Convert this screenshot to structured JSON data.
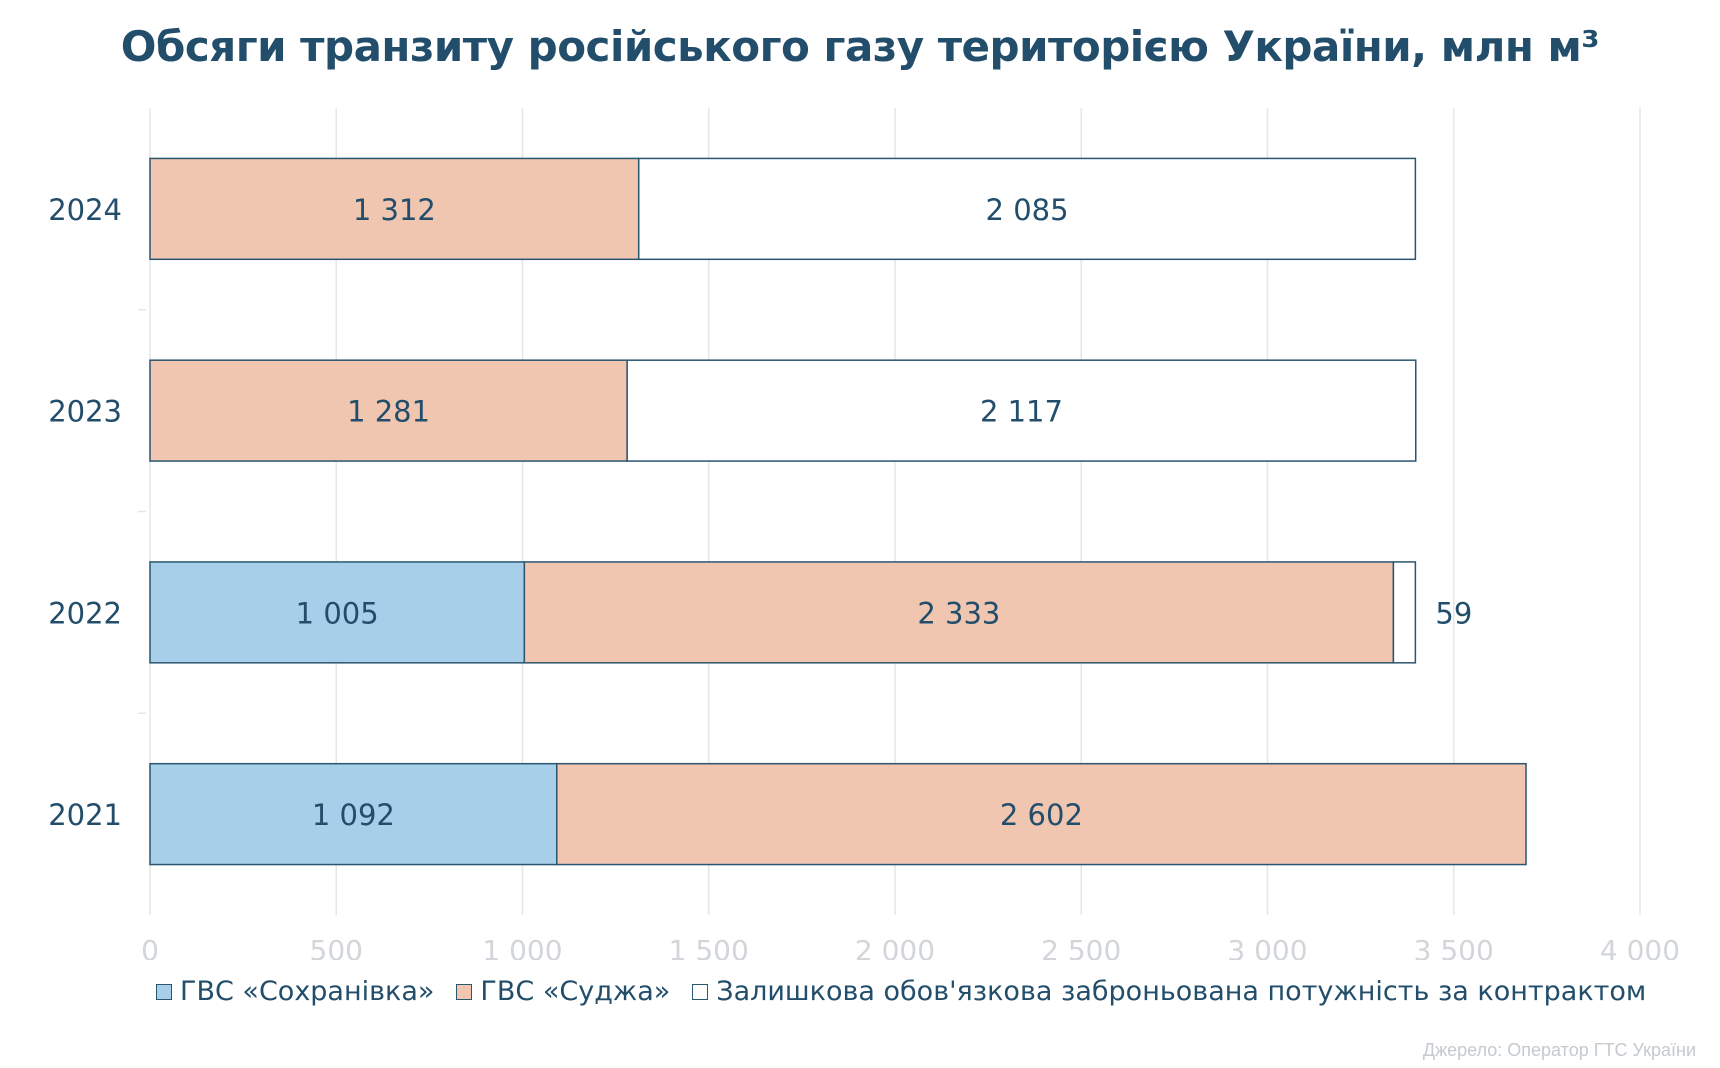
{
  "chart_data": {
    "type": "bar",
    "orientation": "horizontal",
    "stacked": true,
    "title": "Обсяги транзиту російського газу територією України, млн м³",
    "categories": [
      "2024",
      "2023",
      "2022",
      "2021"
    ],
    "series": [
      {
        "name": "ГВС «Сохранівка»",
        "values": [
          0,
          0,
          1005,
          1092
        ],
        "labels": [
          "",
          "",
          "1 005",
          "1 092"
        ],
        "color": "#a8cfe9"
      },
      {
        "name": "ГВС «Суджа»",
        "values": [
          1312,
          1281,
          2333,
          2602
        ],
        "labels": [
          "1 312",
          "1 281",
          "2 333",
          "2 602"
        ],
        "color": "#f0c6b0"
      },
      {
        "name": "Залишкова обов'язкова заброньована потужність за контрактом",
        "values": [
          2085,
          2117,
          59,
          0
        ],
        "labels": [
          "2 085",
          "2 117",
          "59",
          ""
        ],
        "color": "#ffffff"
      }
    ],
    "xlim": [
      0,
      4000
    ],
    "xticks": [
      0,
      500,
      1000,
      1500,
      2000,
      2500,
      3000,
      3500,
      4000
    ],
    "xtick_labels": [
      "0",
      "500",
      "1 000",
      "1 500",
      "2 000",
      "2 500",
      "3 000",
      "3 500",
      "4 000"
    ],
    "grid": true,
    "legend_position": "bottom-left",
    "colors": {
      "title": "#224e6b",
      "text": "#224e6b",
      "border": "#2b5670",
      "grid": "#e6e6e6",
      "tick_label": "#d2d6da"
    }
  },
  "source_note": "Джерело: Оператор ГТС України"
}
